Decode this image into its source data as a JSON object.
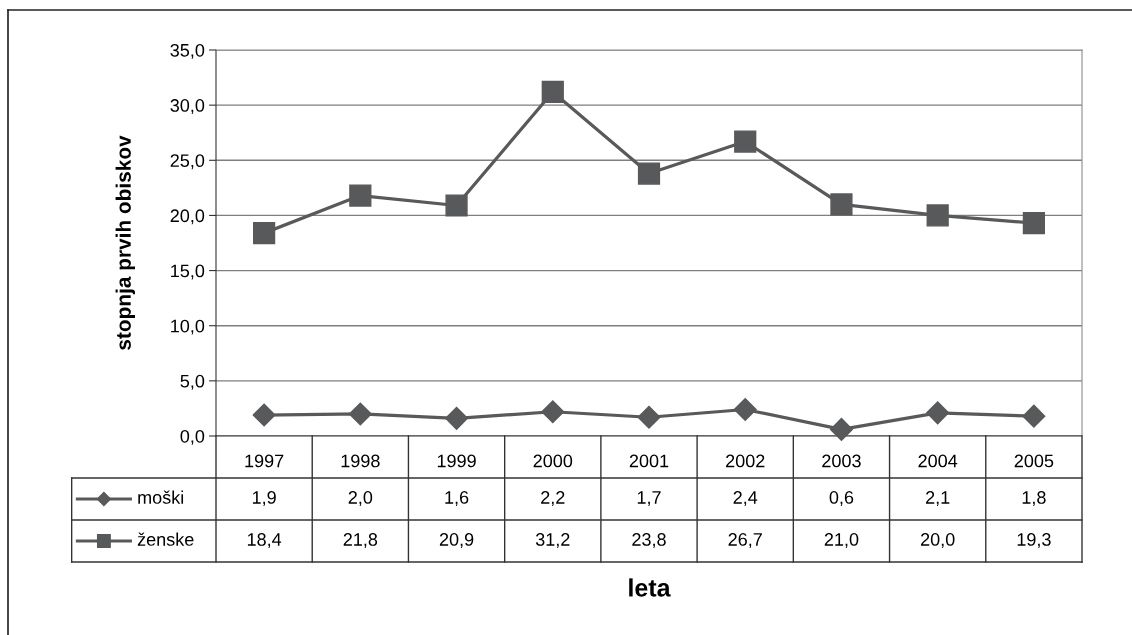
{
  "chart_data": {
    "type": "line",
    "xlabel": "leta",
    "ylabel": "stopnja prvih obiskov",
    "categories": [
      "1997",
      "1998",
      "1999",
      "2000",
      "2001",
      "2002",
      "2003",
      "2004",
      "2005"
    ],
    "series": [
      {
        "name": "moški",
        "color": "#58595b",
        "marker": "diamond",
        "values": [
          1.9,
          2.0,
          1.6,
          2.2,
          1.7,
          2.4,
          0.6,
          2.1,
          1.8
        ],
        "value_labels": [
          "1,9",
          "2,0",
          "1,6",
          "2,2",
          "1,7",
          "2,4",
          "0,6",
          "2,1",
          "1,8"
        ]
      },
      {
        "name": "ženske",
        "color": "#58595b",
        "marker": "square",
        "values": [
          18.4,
          21.8,
          20.9,
          31.2,
          23.8,
          26.7,
          21.0,
          20.0,
          19.3
        ],
        "value_labels": [
          "18,4",
          "21,8",
          "20,9",
          "31,2",
          "23,8",
          "26,7",
          "21,0",
          "20,0",
          "19,3"
        ]
      }
    ],
    "ylim": [
      0,
      35
    ],
    "yticks": [
      {
        "value": 0,
        "label": "0,0"
      },
      {
        "value": 5,
        "label": "5,0"
      },
      {
        "value": 10,
        "label": "10,0"
      },
      {
        "value": 15,
        "label": "15,0"
      },
      {
        "value": 20,
        "label": "20,0"
      },
      {
        "value": 25,
        "label": "25,0"
      },
      {
        "value": 30,
        "label": "30,0"
      },
      {
        "value": 35,
        "label": "35,0"
      }
    ],
    "grid": "y",
    "legend": "bottom",
    "line_style": "solid"
  }
}
